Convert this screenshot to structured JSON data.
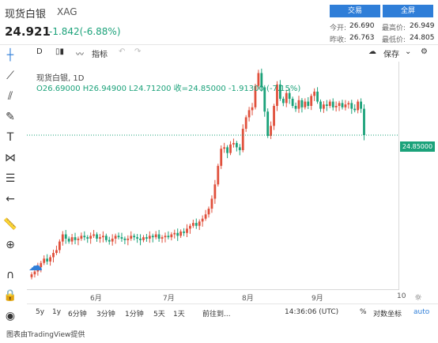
{
  "header": {
    "name": "现货白银",
    "code": "XAG",
    "price": "24.921",
    "change": "-1.842(-6.88%)",
    "trade_btn": "交易",
    "full_btn": "全屏",
    "quotes": [
      {
        "label": "今开:",
        "value": "26.690"
      },
      {
        "label": "最高价:",
        "value": "26.949"
      },
      {
        "label": "昨收:",
        "value": "26.763"
      },
      {
        "label": "最低价:",
        "value": "24.805"
      }
    ]
  },
  "toolbar": {
    "interval": "D",
    "indicator": "指标",
    "save": "保存"
  },
  "legend": {
    "title": "现货白银, 1D",
    "ohlc": "O26.69000  H26.94900  L24.71200  收=24.85000  -1.91300 (-7.15%)"
  },
  "price_tag": "24.85000",
  "x_ticks": [
    {
      "label": "6月"
    },
    {
      "label": "7月"
    },
    {
      "label": "8月"
    },
    {
      "label": "9月"
    },
    {
      "label": "10"
    }
  ],
  "bottom": {
    "ranges": [
      "5y",
      "1y",
      "6分钟",
      "3分钟",
      "1分钟",
      "5天",
      "1天"
    ],
    "goto": "前往到...",
    "time": "14:36:06 (UTC)",
    "percent": "%",
    "log": "对数坐标",
    "auto": "auto"
  },
  "footer": "图表由TradingView提供",
  "colors": {
    "up": "#e0503c",
    "down": "#1ba27a",
    "accent": "#2f7ed8"
  },
  "chart_data": {
    "type": "candlestick",
    "last": 24.85,
    "ylim": [
      14,
      30
    ],
    "closes": [
      15.1,
      15.3,
      15.6,
      15.9,
      16.2,
      16.0,
      16.3,
      16.6,
      16.8,
      17.4,
      17.9,
      17.6,
      17.4,
      17.7,
      17.5,
      17.6,
      17.8,
      17.7,
      17.6,
      17.8,
      17.9,
      17.6,
      17.7,
      17.8,
      17.5,
      17.4,
      17.6,
      17.8,
      17.7,
      17.6,
      17.5,
      17.6,
      17.8,
      17.7,
      17.6,
      17.5,
      17.7,
      17.6,
      17.8,
      17.7,
      17.9,
      17.6,
      17.7,
      17.8,
      17.7,
      17.9,
      18.0,
      17.8,
      18.1,
      18.0,
      18.3,
      18.5,
      18.7,
      18.5,
      18.8,
      19.0,
      19.3,
      19.7,
      20.4,
      21.4,
      22.7,
      23.9,
      24.0,
      23.6,
      24.2,
      24.3,
      24.0,
      23.8,
      25.3,
      26.1,
      26.6,
      26.8,
      28.3,
      29.2,
      28.2,
      26.5,
      24.8,
      25.5,
      26.9,
      28.4,
      27.4,
      27.1,
      27.8,
      27.4,
      26.9,
      26.7,
      27.3,
      26.8,
      27.2,
      26.9,
      27.6,
      27.9,
      27.2,
      26.7,
      27.0,
      26.9,
      27.2,
      26.8,
      26.9,
      27.1,
      26.8,
      27.0,
      27.1,
      26.7,
      26.6,
      27.2,
      26.7,
      24.85
    ]
  }
}
